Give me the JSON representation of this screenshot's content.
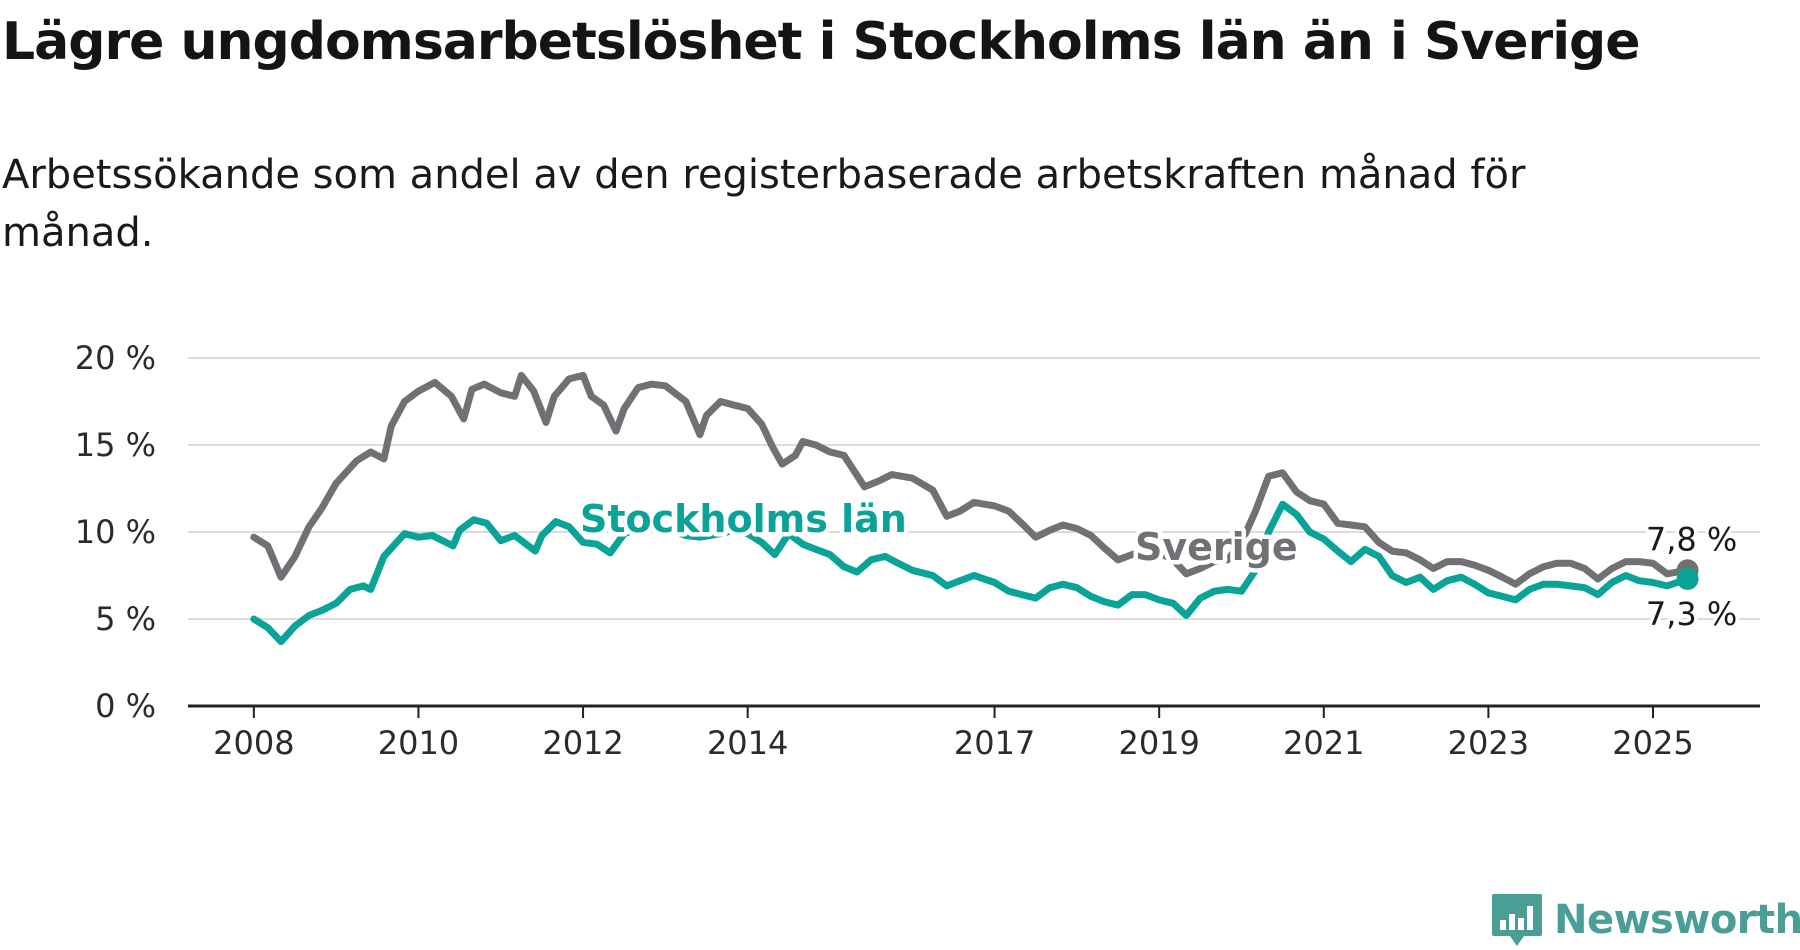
{
  "title": "Lägre ungdomsarbetslöshet i Stockholms län än i Sverige",
  "subtitle": "Arbetssökande som andel av den registerbaserade arbetskraften månad för månad.",
  "brand": "Newsworthy",
  "colors": {
    "sverige": "#707075",
    "stockholm": "#0aa398",
    "grid": "#dcdcdc",
    "axis": "#222222",
    "brand": "#4a9e96"
  },
  "chart_data": {
    "type": "line",
    "title": "Lägre ungdomsarbetslöshet i Stockholms län än i Sverige",
    "subtitle": "Arbetssökande som andel av den registerbaserade arbetskraften månad för månad.",
    "xlabel": "",
    "ylabel": "",
    "x_ticks": [
      "2008",
      "2010",
      "2012",
      "2014",
      "2017",
      "2019",
      "2021",
      "2023",
      "2025"
    ],
    "y_ticks": [
      "0 %",
      "5 %",
      "10 %",
      "15 %",
      "20 %"
    ],
    "ylim": [
      0,
      20
    ],
    "grid": true,
    "legend": "inline labels",
    "series": [
      {
        "name": "Sverige",
        "end_label": "7,8 %",
        "points": [
          [
            2008.0,
            9.7
          ],
          [
            2008.17,
            9.2
          ],
          [
            2008.33,
            7.4
          ],
          [
            2008.5,
            8.6
          ],
          [
            2008.67,
            10.3
          ],
          [
            2008.83,
            11.4
          ],
          [
            2009.0,
            12.8
          ],
          [
            2009.25,
            14.1
          ],
          [
            2009.42,
            14.6
          ],
          [
            2009.58,
            14.2
          ],
          [
            2009.67,
            16.1
          ],
          [
            2009.83,
            17.5
          ],
          [
            2010.0,
            18.1
          ],
          [
            2010.2,
            18.6
          ],
          [
            2010.4,
            17.8
          ],
          [
            2010.55,
            16.5
          ],
          [
            2010.65,
            18.2
          ],
          [
            2010.8,
            18.5
          ],
          [
            2011.0,
            18.0
          ],
          [
            2011.17,
            17.8
          ],
          [
            2011.25,
            19.0
          ],
          [
            2011.4,
            18.1
          ],
          [
            2011.55,
            16.3
          ],
          [
            2011.65,
            17.8
          ],
          [
            2011.83,
            18.8
          ],
          [
            2012.0,
            19.0
          ],
          [
            2012.1,
            17.8
          ],
          [
            2012.25,
            17.3
          ],
          [
            2012.4,
            15.8
          ],
          [
            2012.5,
            17.1
          ],
          [
            2012.67,
            18.3
          ],
          [
            2012.83,
            18.5
          ],
          [
            2013.0,
            18.4
          ],
          [
            2013.25,
            17.5
          ],
          [
            2013.42,
            15.6
          ],
          [
            2013.5,
            16.7
          ],
          [
            2013.67,
            17.5
          ],
          [
            2013.83,
            17.3
          ],
          [
            2014.0,
            17.1
          ],
          [
            2014.17,
            16.2
          ],
          [
            2014.3,
            14.9
          ],
          [
            2014.42,
            13.9
          ],
          [
            2014.58,
            14.4
          ],
          [
            2014.67,
            15.2
          ],
          [
            2014.83,
            15.0
          ],
          [
            2015.0,
            14.6
          ],
          [
            2015.17,
            14.4
          ],
          [
            2015.42,
            12.6
          ],
          [
            2015.58,
            12.9
          ],
          [
            2015.75,
            13.3
          ],
          [
            2016.0,
            13.1
          ],
          [
            2016.25,
            12.4
          ],
          [
            2016.42,
            10.9
          ],
          [
            2016.58,
            11.2
          ],
          [
            2016.75,
            11.7
          ],
          [
            2017.0,
            11.5
          ],
          [
            2017.17,
            11.2
          ],
          [
            2017.33,
            10.5
          ],
          [
            2017.5,
            9.7
          ],
          [
            2017.67,
            10.1
          ],
          [
            2017.83,
            10.4
          ],
          [
            2018.0,
            10.2
          ],
          [
            2018.17,
            9.8
          ],
          [
            2018.33,
            9.1
          ],
          [
            2018.5,
            8.4
          ],
          [
            2018.67,
            8.7
          ],
          [
            2018.83,
            8.9
          ],
          [
            2019.0,
            8.8
          ],
          [
            2019.17,
            8.4
          ],
          [
            2019.33,
            7.6
          ],
          [
            2019.5,
            7.9
          ],
          [
            2019.67,
            8.3
          ],
          [
            2019.83,
            8.4
          ],
          [
            2020.0,
            9.4
          ],
          [
            2020.17,
            11.2
          ],
          [
            2020.33,
            13.2
          ],
          [
            2020.5,
            13.4
          ],
          [
            2020.67,
            12.3
          ],
          [
            2020.83,
            11.8
          ],
          [
            2021.0,
            11.6
          ],
          [
            2021.17,
            10.5
          ],
          [
            2021.33,
            10.4
          ],
          [
            2021.5,
            10.3
          ],
          [
            2021.67,
            9.4
          ],
          [
            2021.83,
            8.9
          ],
          [
            2022.0,
            8.8
          ],
          [
            2022.17,
            8.4
          ],
          [
            2022.33,
            7.9
          ],
          [
            2022.5,
            8.3
          ],
          [
            2022.67,
            8.3
          ],
          [
            2022.83,
            8.1
          ],
          [
            2023.0,
            7.8
          ],
          [
            2023.17,
            7.4
          ],
          [
            2023.33,
            7.0
          ],
          [
            2023.5,
            7.6
          ],
          [
            2023.67,
            8.0
          ],
          [
            2023.83,
            8.2
          ],
          [
            2024.0,
            8.2
          ],
          [
            2024.17,
            7.9
          ],
          [
            2024.33,
            7.3
          ],
          [
            2024.5,
            7.9
          ],
          [
            2024.67,
            8.3
          ],
          [
            2024.83,
            8.3
          ],
          [
            2025.0,
            8.2
          ],
          [
            2025.17,
            7.6
          ],
          [
            2025.42,
            7.8
          ]
        ]
      },
      {
        "name": "Stockholms län",
        "end_label": "7,3 %",
        "points": [
          [
            2008.0,
            5.0
          ],
          [
            2008.17,
            4.5
          ],
          [
            2008.33,
            3.7
          ],
          [
            2008.5,
            4.6
          ],
          [
            2008.67,
            5.2
          ],
          [
            2008.83,
            5.5
          ],
          [
            2009.0,
            5.9
          ],
          [
            2009.17,
            6.7
          ],
          [
            2009.33,
            6.9
          ],
          [
            2009.42,
            6.7
          ],
          [
            2009.58,
            8.6
          ],
          [
            2009.83,
            9.9
          ],
          [
            2010.0,
            9.7
          ],
          [
            2010.17,
            9.8
          ],
          [
            2010.42,
            9.2
          ],
          [
            2010.5,
            10.1
          ],
          [
            2010.67,
            10.7
          ],
          [
            2010.83,
            10.5
          ],
          [
            2011.0,
            9.5
          ],
          [
            2011.17,
            9.8
          ],
          [
            2011.42,
            8.9
          ],
          [
            2011.5,
            9.8
          ],
          [
            2011.67,
            10.6
          ],
          [
            2011.83,
            10.3
          ],
          [
            2012.0,
            9.4
          ],
          [
            2012.17,
            9.3
          ],
          [
            2012.33,
            8.8
          ],
          [
            2012.5,
            9.9
          ],
          [
            2012.67,
            10.2
          ],
          [
            2012.83,
            10.3
          ],
          [
            2013.0,
            10.2
          ],
          [
            2013.25,
            9.8
          ],
          [
            2013.42,
            9.7
          ],
          [
            2013.67,
            9.9
          ],
          [
            2013.83,
            10.1
          ],
          [
            2014.0,
            9.9
          ],
          [
            2014.17,
            9.4
          ],
          [
            2014.33,
            8.7
          ],
          [
            2014.5,
            9.9
          ],
          [
            2014.67,
            9.3
          ],
          [
            2014.83,
            9.0
          ],
          [
            2015.0,
            8.7
          ],
          [
            2015.17,
            8.0
          ],
          [
            2015.33,
            7.7
          ],
          [
            2015.5,
            8.4
          ],
          [
            2015.67,
            8.6
          ],
          [
            2015.83,
            8.2
          ],
          [
            2016.0,
            7.8
          ],
          [
            2016.25,
            7.5
          ],
          [
            2016.42,
            6.9
          ],
          [
            2016.58,
            7.2
          ],
          [
            2016.75,
            7.5
          ],
          [
            2017.0,
            7.1
          ],
          [
            2017.17,
            6.6
          ],
          [
            2017.33,
            6.4
          ],
          [
            2017.5,
            6.2
          ],
          [
            2017.67,
            6.8
          ],
          [
            2017.83,
            7.0
          ],
          [
            2018.0,
            6.8
          ],
          [
            2018.17,
            6.3
          ],
          [
            2018.33,
            6.0
          ],
          [
            2018.5,
            5.8
          ],
          [
            2018.67,
            6.4
          ],
          [
            2018.83,
            6.4
          ],
          [
            2019.0,
            6.1
          ],
          [
            2019.17,
            5.9
          ],
          [
            2019.33,
            5.2
          ],
          [
            2019.5,
            6.2
          ],
          [
            2019.67,
            6.6
          ],
          [
            2019.83,
            6.7
          ],
          [
            2020.0,
            6.6
          ],
          [
            2020.17,
            7.8
          ],
          [
            2020.33,
            10.0
          ],
          [
            2020.5,
            11.6
          ],
          [
            2020.67,
            11.0
          ],
          [
            2020.83,
            10.0
          ],
          [
            2021.0,
            9.6
          ],
          [
            2021.17,
            8.9
          ],
          [
            2021.33,
            8.3
          ],
          [
            2021.5,
            9.0
          ],
          [
            2021.67,
            8.6
          ],
          [
            2021.83,
            7.5
          ],
          [
            2022.0,
            7.1
          ],
          [
            2022.17,
            7.4
          ],
          [
            2022.33,
            6.7
          ],
          [
            2022.5,
            7.2
          ],
          [
            2022.67,
            7.4
          ],
          [
            2022.83,
            7.0
          ],
          [
            2023.0,
            6.5
          ],
          [
            2023.17,
            6.3
          ],
          [
            2023.33,
            6.1
          ],
          [
            2023.5,
            6.7
          ],
          [
            2023.67,
            7.0
          ],
          [
            2023.83,
            7.0
          ],
          [
            2024.0,
            6.9
          ],
          [
            2024.17,
            6.8
          ],
          [
            2024.33,
            6.4
          ],
          [
            2024.5,
            7.1
          ],
          [
            2024.67,
            7.5
          ],
          [
            2024.83,
            7.2
          ],
          [
            2025.0,
            7.1
          ],
          [
            2025.17,
            6.9
          ],
          [
            2025.42,
            7.3
          ]
        ]
      }
    ]
  }
}
